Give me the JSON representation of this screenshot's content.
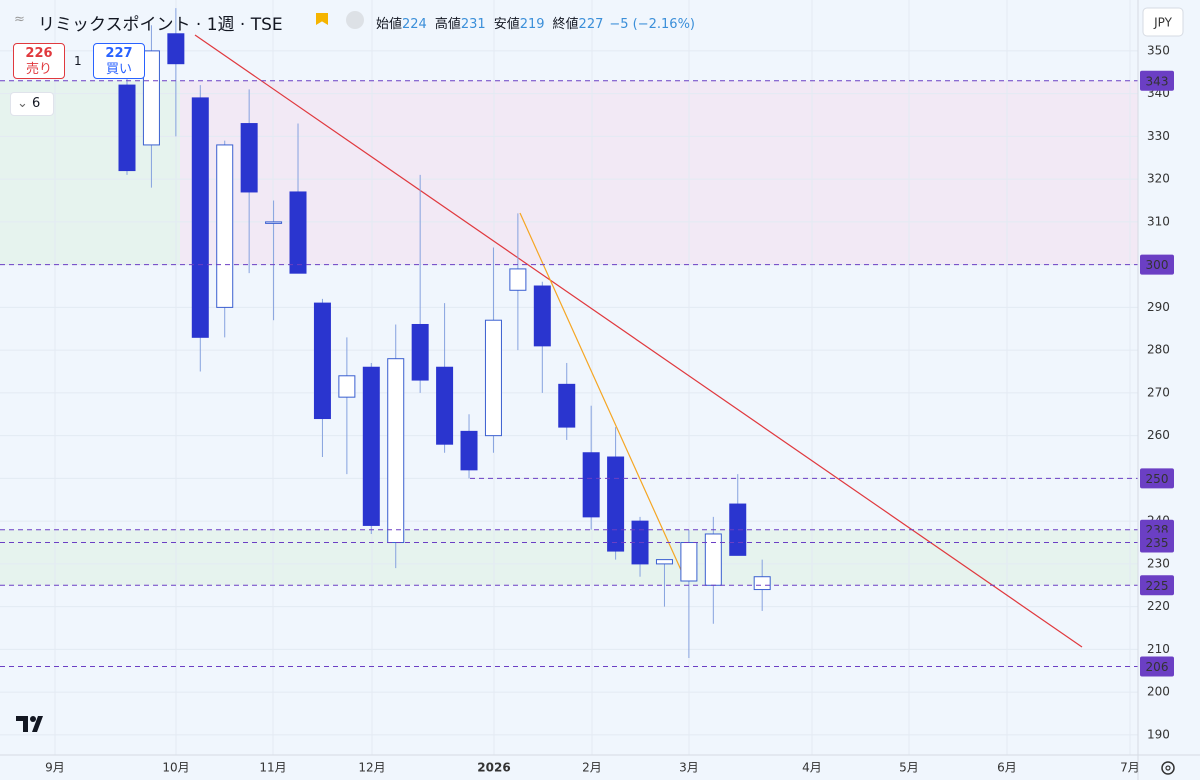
{
  "header": {
    "title": "リミックスポイント · 1週 · TSE",
    "ohlc": [
      {
        "label": "始値",
        "value": 224
      },
      {
        "label": "高値",
        "value": 231
      },
      {
        "label": "安値",
        "value": 219
      },
      {
        "label": "終値",
        "value": 227
      }
    ],
    "change": "−5 (−2.16%)",
    "sell": {
      "price": 226,
      "label": "売り"
    },
    "qty": 1,
    "buy": {
      "price": 227,
      "label": "買い"
    },
    "indicators": 6,
    "currency": "JPY"
  },
  "chart_data": {
    "type": "candlestick",
    "up_color": "#ffffff",
    "down_color": "#2a35cf",
    "wick_color": "#86a2df",
    "level_color": "#6b3fc4",
    "candles": [
      {
        "open": 342,
        "high": 351,
        "low": 321,
        "close": 322
      },
      {
        "open": 328,
        "high": 356,
        "low": 318,
        "close": 350
      },
      {
        "open": 354,
        "high": 360,
        "low": 330,
        "close": 347
      },
      {
        "open": 339,
        "high": 342,
        "low": 275,
        "close": 283
      },
      {
        "open": 290,
        "high": 329,
        "low": 283,
        "close": 328
      },
      {
        "open": 333,
        "high": 341,
        "low": 298,
        "close": 317
      },
      {
        "open": 310,
        "high": 315,
        "low": 287,
        "close": 310
      },
      {
        "open": 317,
        "high": 333,
        "low": 298,
        "close": 298
      },
      {
        "open": 291,
        "high": 292,
        "low": 255,
        "close": 264
      },
      {
        "open": 269,
        "high": 283,
        "low": 251,
        "close": 274
      },
      {
        "open": 276,
        "high": 277,
        "low": 237,
        "close": 239
      },
      {
        "open": 235,
        "high": 286,
        "low": 229,
        "close": 278
      },
      {
        "open": 286,
        "high": 321,
        "low": 270,
        "close": 273
      },
      {
        "open": 276,
        "high": 291,
        "low": 256,
        "close": 258
      },
      {
        "open": 261,
        "high": 265,
        "low": 250,
        "close": 252
      },
      {
        "open": 260,
        "high": 304,
        "low": 256,
        "close": 287
      },
      {
        "open": 294,
        "high": 312,
        "low": 280,
        "close": 299
      },
      {
        "open": 295,
        "high": 296,
        "low": 270,
        "close": 281
      },
      {
        "open": 272,
        "high": 277,
        "low": 259,
        "close": 262
      },
      {
        "open": 256,
        "high": 267,
        "low": 238,
        "close": 241
      },
      {
        "open": 255,
        "high": 262,
        "low": 231,
        "close": 233
      },
      {
        "open": 240,
        "high": 241,
        "low": 227,
        "close": 230
      },
      {
        "open": 230,
        "high": 231,
        "low": 220,
        "close": 231
      },
      {
        "open": 226,
        "high": 238,
        "low": 208,
        "close": 235
      },
      {
        "open": 225,
        "high": 241,
        "low": 216,
        "close": 237
      },
      {
        "open": 244,
        "high": 251,
        "low": 232,
        "close": 232
      },
      {
        "open": 224,
        "high": 231,
        "low": 219,
        "close": 227
      }
    ],
    "ylim": [
      185.3,
      361.9
    ],
    "yticks": [
      190,
      200,
      210,
      220,
      230,
      240,
      250,
      260,
      270,
      280,
      290,
      300,
      310,
      320,
      330,
      340,
      350
    ],
    "xticks": [
      "9月",
      "10月",
      "11月",
      "12月",
      "2026",
      "2月",
      "3月",
      "4月",
      "5月",
      "6月",
      "7月"
    ],
    "levels": [
      343,
      300,
      250,
      238,
      235,
      225,
      206
    ],
    "grid": true
  }
}
